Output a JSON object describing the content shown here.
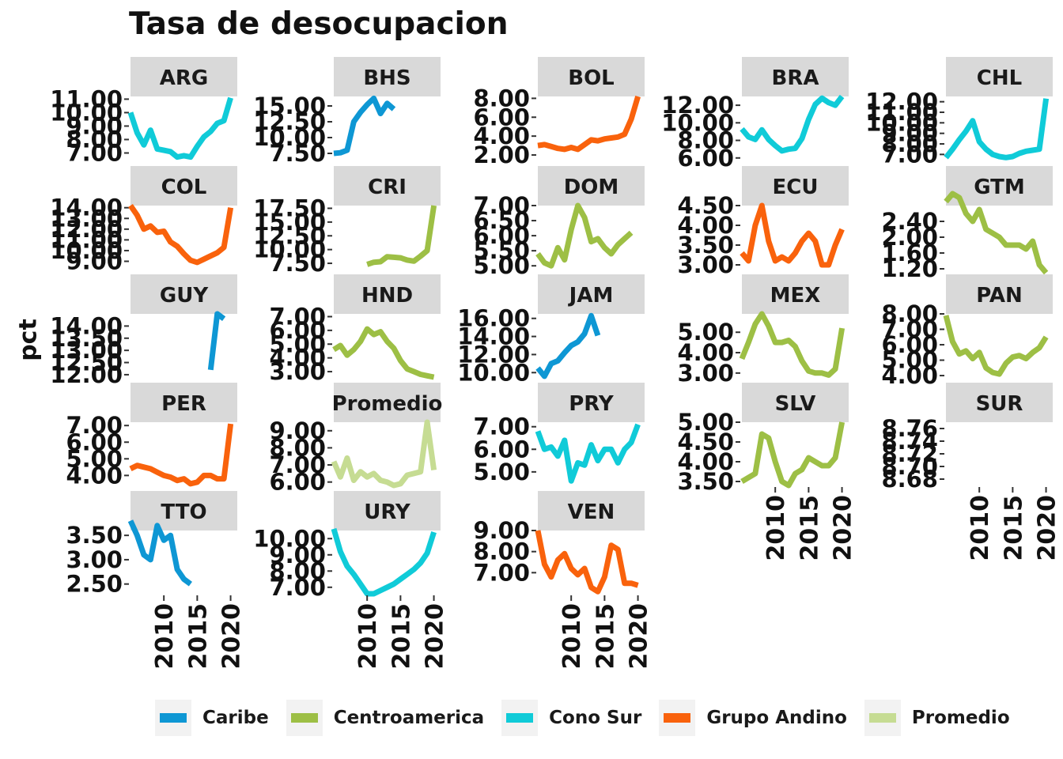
{
  "title": "Tasa de desocupacion",
  "chart_data": {
    "type": "line",
    "title": "Tasa de desocupacion",
    "xlabel": "",
    "ylabel": "pct",
    "x_ticks": [
      2010,
      2015,
      2020
    ],
    "xlim": [
      2005,
      2021
    ],
    "legend_position": "bottom",
    "grid": false,
    "legend": [
      {
        "name": "Caribe",
        "color": "#0e97d4"
      },
      {
        "name": "Centroamerica",
        "color": "#9dbf45"
      },
      {
        "name": "Cono Sur",
        "color": "#10cbd8"
      },
      {
        "name": "Grupo Andino",
        "color": "#f9620c"
      },
      {
        "name": "Promedio",
        "color": "#c6dc93"
      }
    ],
    "panels": [
      {
        "label": "ARG",
        "group": "Cono Sur",
        "y_ticks": [
          "7.00",
          "8.00",
          "9.00",
          "10.00",
          "11.00"
        ],
        "ylim": [
          6.5,
          11.2
        ],
        "x": [
          2005,
          2006,
          2007,
          2008,
          2009,
          2010,
          2011,
          2012,
          2013,
          2014,
          2015,
          2016,
          2017,
          2018,
          2019,
          2020
        ],
        "y": [
          10.0,
          8.5,
          7.6,
          8.7,
          7.3,
          7.2,
          7.1,
          6.7,
          6.8,
          6.7,
          7.5,
          8.2,
          8.6,
          9.2,
          9.4,
          11.1
        ]
      },
      {
        "label": "BHS",
        "group": "Caribe",
        "y_ticks": [
          "7.50",
          "10.00",
          "12.50",
          "15.00"
        ],
        "ylim": [
          6.5,
          16.5
        ],
        "x": [
          2005,
          2006,
          2007,
          2008,
          2009,
          2010,
          2011,
          2012,
          2013,
          2014
        ],
        "y": [
          7.5,
          7.6,
          8.0,
          12.5,
          14.0,
          15.2,
          16.2,
          13.8,
          15.4,
          14.5
        ]
      },
      {
        "label": "BOL",
        "group": "Grupo Andino",
        "y_ticks": [
          "2.00",
          "4.00",
          "6.00",
          "8.00"
        ],
        "ylim": [
          1.5,
          8.2
        ],
        "x": [
          2005,
          2006,
          2007,
          2008,
          2009,
          2010,
          2011,
          2012,
          2013,
          2014,
          2015,
          2016,
          2017,
          2018,
          2019,
          2020
        ],
        "y": [
          3.0,
          3.1,
          2.9,
          2.7,
          2.6,
          2.8,
          2.6,
          3.1,
          3.6,
          3.5,
          3.7,
          3.8,
          3.9,
          4.2,
          5.8,
          8.2
        ]
      },
      {
        "label": "BRA",
        "group": "Cono Sur",
        "y_ticks": [
          "6.00",
          "8.00",
          "10.00",
          "12.00"
        ],
        "ylim": [
          5.8,
          13.0
        ],
        "x": [
          2005,
          2006,
          2007,
          2008,
          2009,
          2010,
          2011,
          2012,
          2013,
          2014,
          2015,
          2016,
          2017,
          2018,
          2019,
          2020
        ],
        "y": [
          9.3,
          8.4,
          8.1,
          9.2,
          8.1,
          7.4,
          6.8,
          7.0,
          7.1,
          8.2,
          10.4,
          12.1,
          12.8,
          12.3,
          12.0,
          13.0
        ]
      },
      {
        "label": "CHL",
        "group": "Cono Sur",
        "y_ticks": [
          "7.00",
          "8.00",
          "9.00",
          "10.00",
          "11.00",
          "12.00"
        ],
        "ylim": [
          6.5,
          12.5
        ],
        "x": [
          2005,
          2006,
          2007,
          2008,
          2009,
          2010,
          2011,
          2012,
          2013,
          2014,
          2015,
          2016,
          2017,
          2018,
          2019,
          2020
        ],
        "y": [
          6.7,
          7.5,
          8.4,
          9.2,
          10.2,
          8.2,
          7.5,
          7.0,
          6.8,
          6.7,
          6.8,
          7.1,
          7.3,
          7.4,
          7.5,
          12.3
        ]
      },
      {
        "label": "COL",
        "group": "Grupo Andino",
        "y_ticks": [
          "9.00",
          "10.00",
          "11.00",
          "12.00",
          "13.00",
          "14.00"
        ],
        "ylim": [
          8.3,
          14.2
        ],
        "x": [
          2005,
          2006,
          2007,
          2008,
          2009,
          2010,
          2011,
          2012,
          2013,
          2014,
          2015,
          2016,
          2017,
          2018,
          2019,
          2020
        ],
        "y": [
          14.2,
          13.3,
          12.0,
          12.3,
          11.7,
          11.8,
          10.8,
          10.4,
          9.7,
          9.1,
          8.9,
          9.2,
          9.5,
          9.8,
          10.3,
          14.0
        ]
      },
      {
        "label": "CRI",
        "group": "Centroamerica",
        "y_ticks": [
          "7.50",
          "10.00",
          "12.50",
          "15.00",
          "17.50"
        ],
        "ylim": [
          6.5,
          18.0
        ],
        "x": [
          2010,
          2011,
          2012,
          2013,
          2014,
          2015,
          2016,
          2017,
          2018,
          2019,
          2020
        ],
        "y": [
          7.3,
          7.7,
          7.8,
          8.7,
          8.6,
          8.5,
          8.1,
          7.9,
          8.8,
          9.8,
          18.0
        ]
      },
      {
        "label": "DOM",
        "group": "Centroamerica",
        "y_ticks": [
          "5.00",
          "5.50",
          "6.00",
          "6.50",
          "7.00"
        ],
        "ylim": [
          4.9,
          7.0
        ],
        "x": [
          2005,
          2006,
          2007,
          2008,
          2009,
          2010,
          2011,
          2012,
          2013,
          2014,
          2015,
          2016,
          2017,
          2018,
          2019
        ],
        "y": [
          5.4,
          5.1,
          5.0,
          5.6,
          5.2,
          6.2,
          7.0,
          6.6,
          5.8,
          5.9,
          5.6,
          5.4,
          5.7,
          5.9,
          6.1
        ]
      },
      {
        "label": "ECU",
        "group": "Grupo Andino",
        "y_ticks": [
          "3.00",
          "3.50",
          "4.00",
          "4.50"
        ],
        "ylim": [
          2.9,
          4.5
        ],
        "x": [
          2005,
          2006,
          2007,
          2008,
          2009,
          2010,
          2011,
          2012,
          2013,
          2014,
          2015,
          2016,
          2017,
          2018,
          2019,
          2020
        ],
        "y": [
          3.3,
          3.1,
          4.0,
          4.5,
          3.6,
          3.1,
          3.2,
          3.1,
          3.3,
          3.6,
          3.8,
          3.6,
          3.0,
          3.0,
          3.5,
          3.9
        ]
      },
      {
        "label": "GTM",
        "group": "Centroamerica",
        "y_ticks": [
          "1.20",
          "1.60",
          "2.00",
          "2.40"
        ],
        "ylim": [
          1.2,
          2.8
        ],
        "x": [
          2005,
          2006,
          2007,
          2008,
          2009,
          2010,
          2011,
          2012,
          2013,
          2014,
          2015,
          2016,
          2017,
          2018,
          2019,
          2020
        ],
        "y": [
          2.9,
          3.1,
          3.0,
          2.6,
          2.4,
          2.7,
          2.2,
          2.1,
          2.0,
          1.8,
          1.8,
          1.8,
          1.7,
          1.9,
          1.3,
          1.1
        ]
      },
      {
        "label": "GUY",
        "group": "Caribe",
        "y_ticks": [
          "12.00",
          "12.50",
          "13.00",
          "13.50",
          "14.00"
        ],
        "ylim": [
          11.9,
          14.5
        ],
        "x": [
          2017,
          2018,
          2019
        ],
        "y": [
          12.2,
          14.5,
          14.3
        ]
      },
      {
        "label": "HND",
        "group": "Centroamerica",
        "y_ticks": [
          "3.00",
          "4.00",
          "5.00",
          "6.00",
          "7.00"
        ],
        "ylim": [
          2.6,
          7.2
        ],
        "x": [
          2005,
          2006,
          2007,
          2008,
          2009,
          2010,
          2011,
          2012,
          2013,
          2014,
          2015,
          2016,
          2017,
          2018,
          2019,
          2020
        ],
        "y": [
          4.6,
          4.9,
          4.2,
          4.6,
          5.2,
          6.1,
          5.7,
          5.9,
          5.2,
          4.7,
          3.8,
          3.2,
          3.0,
          2.8,
          2.7,
          2.6
        ]
      },
      {
        "label": "JAM",
        "group": "Caribe",
        "y_ticks": [
          "10.00",
          "12.00",
          "14.00",
          "16.00"
        ],
        "ylim": [
          9.5,
          16.5
        ],
        "x": [
          2005,
          2006,
          2007,
          2008,
          2009,
          2010,
          2011,
          2012,
          2013,
          2014
        ],
        "y": [
          10.5,
          9.6,
          11.0,
          11.3,
          12.2,
          13.0,
          13.4,
          14.3,
          16.3,
          14.1
        ]
      },
      {
        "label": "MEX",
        "group": "Centroamerica",
        "y_ticks": [
          "3.00",
          "4.00",
          "5.00"
        ],
        "ylim": [
          2.8,
          5.9
        ],
        "x": [
          2005,
          2006,
          2007,
          2008,
          2009,
          2010,
          2011,
          2012,
          2013,
          2014,
          2015,
          2016,
          2017,
          2018,
          2019,
          2020
        ],
        "y": [
          3.7,
          4.5,
          5.4,
          5.9,
          5.3,
          4.5,
          4.5,
          4.6,
          4.3,
          3.6,
          3.1,
          3.0,
          3.0,
          2.9,
          3.2,
          5.2
        ]
      },
      {
        "label": "PAN",
        "group": "Centroamerica",
        "y_ticks": [
          "4.00",
          "5.00",
          "6.00",
          "7.00",
          "8.00"
        ],
        "ylim": [
          3.9,
          8.0
        ],
        "x": [
          2005,
          2006,
          2007,
          2008,
          2009,
          2010,
          2011,
          2012,
          2013,
          2014,
          2015,
          2016,
          2017,
          2018,
          2019,
          2020
        ],
        "y": [
          7.9,
          6.2,
          5.4,
          5.6,
          5.1,
          5.5,
          4.5,
          4.2,
          4.1,
          4.8,
          5.2,
          5.3,
          5.1,
          5.5,
          5.8,
          6.5
        ]
      },
      {
        "label": "PER",
        "group": "Grupo Andino",
        "y_ticks": [
          "4.00",
          "5.00",
          "6.00",
          "7.00"
        ],
        "ylim": [
          3.4,
          7.2
        ],
        "x": [
          2005,
          2006,
          2007,
          2008,
          2009,
          2010,
          2011,
          2012,
          2013,
          2014,
          2015,
          2016,
          2017,
          2018,
          2019,
          2020
        ],
        "y": [
          4.4,
          4.6,
          4.5,
          4.4,
          4.2,
          4.0,
          3.9,
          3.7,
          3.8,
          3.5,
          3.6,
          4.0,
          4.0,
          3.8,
          3.8,
          7.1
        ]
      },
      {
        "label": "Promedio",
        "group": "Promedio",
        "y_ticks": [
          "6.00",
          "7.00",
          "8.00",
          "9.00"
        ],
        "ylim": [
          5.8,
          9.5
        ],
        "x": [
          2005,
          2006,
          2007,
          2008,
          2009,
          2010,
          2011,
          2012,
          2013,
          2014,
          2015,
          2016,
          2017,
          2018,
          2019,
          2020
        ],
        "y": [
          7.2,
          6.3,
          7.4,
          6.1,
          6.6,
          6.3,
          6.5,
          6.1,
          6.0,
          5.8,
          5.9,
          6.4,
          6.5,
          6.6,
          9.5,
          6.7
        ]
      },
      {
        "label": "PRY",
        "group": "Cono Sur",
        "y_ticks": [
          "5.00",
          "6.00",
          "7.00"
        ],
        "ylim": [
          4.4,
          7.2
        ],
        "x": [
          2005,
          2006,
          2007,
          2008,
          2009,
          2010,
          2011,
          2012,
          2013,
          2014,
          2015,
          2016,
          2017,
          2018,
          2019,
          2020
        ],
        "y": [
          6.8,
          6.0,
          6.1,
          5.7,
          6.4,
          4.6,
          5.4,
          5.3,
          6.2,
          5.5,
          6.0,
          6.0,
          5.4,
          6.0,
          6.3,
          7.1
        ]
      },
      {
        "label": "SLV",
        "group": "Centroamerica",
        "y_ticks": [
          "3.50",
          "4.00",
          "4.50",
          "5.00"
        ],
        "ylim": [
          3.4,
          5.0
        ],
        "x": [
          2005,
          2006,
          2007,
          2008,
          2009,
          2010,
          2011,
          2012,
          2013,
          2014,
          2015,
          2016,
          2017,
          2018,
          2019,
          2020
        ],
        "y": [
          3.5,
          3.6,
          3.7,
          4.7,
          4.6,
          4.0,
          3.5,
          3.4,
          3.7,
          3.8,
          4.1,
          4.0,
          3.9,
          3.9,
          4.1,
          5.0
        ]
      },
      {
        "label": "SUR",
        "group": "Caribe",
        "y_ticks": [
          "8.68",
          "8.70",
          "8.72",
          "8.74",
          "8.76"
        ],
        "ylim": [
          8.67,
          8.77
        ],
        "x": [],
        "y": []
      },
      {
        "label": "TTO",
        "group": "Caribe",
        "y_ticks": [
          "2.50",
          "3.00",
          "3.50"
        ],
        "ylim": [
          2.3,
          3.6
        ],
        "x": [
          2005,
          2006,
          2007,
          2008,
          2009,
          2010,
          2011,
          2012,
          2013,
          2014
        ],
        "y": [
          3.8,
          3.5,
          3.1,
          3.0,
          3.7,
          3.4,
          3.5,
          2.8,
          2.6,
          2.5
        ]
      },
      {
        "label": "URY",
        "group": "Cono Sur",
        "y_ticks": [
          "7.00",
          "8.00",
          "9.00",
          "10.00"
        ],
        "ylim": [
          6.6,
          10.5
        ],
        "x": [
          2005,
          2006,
          2007,
          2008,
          2009,
          2010,
          2011,
          2012,
          2013,
          2014,
          2015,
          2016,
          2017,
          2018,
          2019,
          2020
        ],
        "y": [
          10.6,
          9.2,
          8.3,
          7.8,
          7.2,
          6.6,
          6.6,
          6.8,
          7.0,
          7.2,
          7.5,
          7.8,
          8.1,
          8.5,
          9.1,
          10.4
        ]
      },
      {
        "label": "VEN",
        "group": "Grupo Andino",
        "y_ticks": [
          "7.00",
          "8.00",
          "9.00"
        ],
        "ylim": [
          6.0,
          9.0
        ],
        "x": [
          2005,
          2006,
          2007,
          2008,
          2009,
          2010,
          2011,
          2012,
          2013,
          2014,
          2015,
          2016,
          2017,
          2018,
          2019,
          2020
        ],
        "y": [
          9.0,
          7.4,
          6.8,
          7.6,
          7.9,
          7.2,
          6.9,
          7.2,
          6.3,
          6.1,
          6.8,
          8.3,
          8.1,
          6.5,
          6.5,
          6.4
        ]
      }
    ]
  }
}
